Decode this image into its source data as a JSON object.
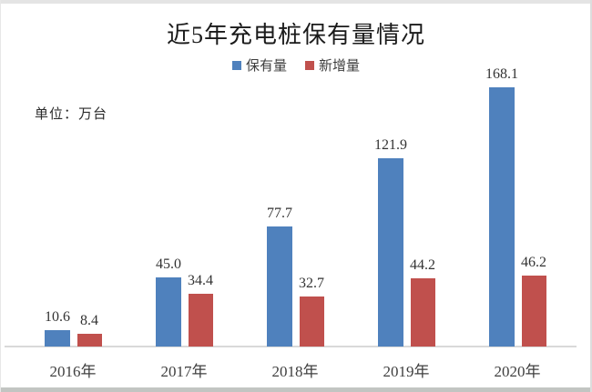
{
  "chart": {
    "unit_label": "单位：万台"
  },
  "chart_data": {
    "type": "bar",
    "title": "近5年充电桩保有量情况",
    "categories": [
      "2016年",
      "2017年",
      "2018年",
      "2019年",
      "2020年"
    ],
    "series": [
      {
        "name": "保有量",
        "color": "#4f81bd",
        "values": [
          10.6,
          45.0,
          77.7,
          121.9,
          168.1
        ]
      },
      {
        "name": "新增量",
        "color": "#c0504d",
        "values": [
          8.4,
          34.4,
          32.7,
          44.2,
          46.2
        ]
      }
    ],
    "xlabel": "",
    "ylabel": "单位：万台",
    "ylim": [
      0,
      180
    ],
    "grid": false,
    "legend_position": "top",
    "value_labels_shown": true
  }
}
